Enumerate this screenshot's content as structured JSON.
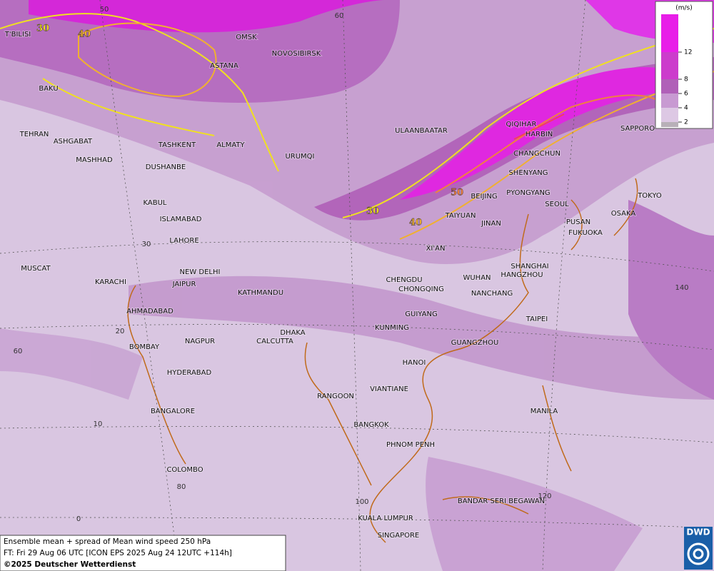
{
  "map": {
    "cities": [
      "OMSK",
      "NOVOSIBIRSK",
      "ASTANA",
      "T'BILISI",
      "BAKU",
      "TEHRAN",
      "ASHGABAT",
      "MASHHAD",
      "TASHKENT",
      "ALMATY",
      "DUSHANBE",
      "URUMQI",
      "ULAANBAATAR",
      "QIQIHAR",
      "HARBIN",
      "CHANGCHUN",
      "SAPPORO",
      "SHENYANG",
      "BEIJING",
      "PYONGYANG",
      "SEOUL",
      "TOKYO",
      "OSAKA",
      "PUSAN",
      "FUKUOKA",
      "TAIYUAN",
      "JINAN",
      "XI'AN",
      "KABUL",
      "ISLAMABAD",
      "LAHORE",
      "NEW DELHI",
      "JAIPUR",
      "KARACHI",
      "MUSCAT",
      "AHMADABAD",
      "KATHMANDU",
      "SHANGHAI",
      "HANGZHOU",
      "WUHAN",
      "CHENGDU",
      "CHONGQING",
      "NANCHANG",
      "GUIYANG",
      "TAIPEI",
      "KUNMING",
      "NAGPUR",
      "BOMBAY",
      "DHAKA",
      "CALCUTTA",
      "GUANGZHOU",
      "HANOI",
      "HYDERABAD",
      "VIANTIANE",
      "RANGOON",
      "MANILA",
      "BANGALORE",
      "BANGKOK",
      "PHNOM PENH",
      "COLOMBO",
      "BANDAR SERI BEGAWAN",
      "KUALA LUMPUR",
      "SINGAPORE"
    ],
    "graticule_labels": [
      50,
      60,
      30,
      20,
      60,
      10,
      80,
      0,
      100,
      120,
      140
    ],
    "contour_labels": [
      {
        "value": 30,
        "color": "#f0e020"
      },
      {
        "value": 40,
        "color": "#f0b030"
      },
      {
        "value": 30,
        "color": "#f0e020"
      },
      {
        "value": 40,
        "color": "#f0b030"
      },
      {
        "value": 50,
        "color": "#f08040"
      }
    ],
    "legend": {
      "unit": "(m/s)",
      "ticks": [
        12,
        8,
        6,
        4,
        2
      ],
      "colors": [
        "#e81ee8",
        "#cc3ccc",
        "#b060b8",
        "#c89ad2",
        "#ddc8e4",
        "#b8b0b8"
      ]
    },
    "footer": {
      "line1": "Ensemble mean + spread of Mean wind speed 250 hPa",
      "line2": "FT: Fri 29 Aug 06 UTC [ICON EPS 2025 Aug 24 12UTC +114h]",
      "line3": "©2025 Deutscher Wetterdienst"
    },
    "logo": "DWD"
  }
}
